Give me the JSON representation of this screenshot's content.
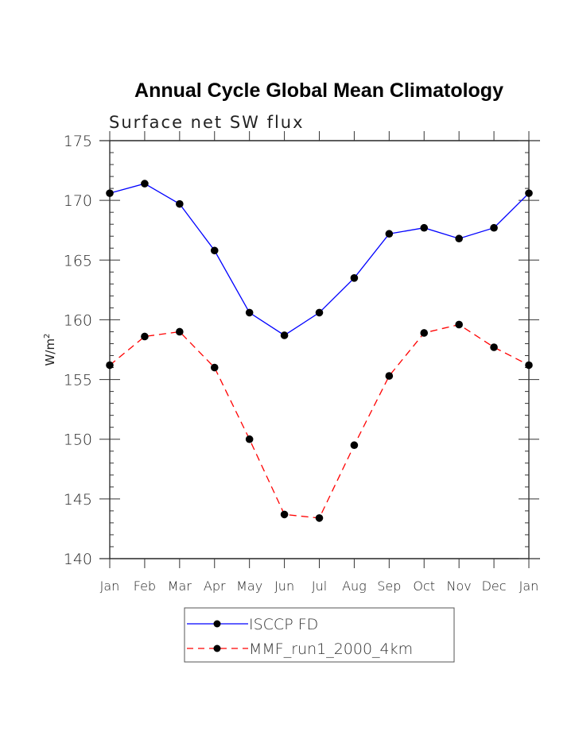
{
  "chart_data": {
    "type": "line",
    "title": "Annual Cycle Global Mean Climatology",
    "subtitle": "Surface net SW flux",
    "xlabel": "",
    "ylabel": "W/m2",
    "ylabel_base": "W/m",
    "ylabel_sup": "2",
    "categories": [
      "Jan",
      "Feb",
      "Mar",
      "Apr",
      "May",
      "Jun",
      "Jul",
      "Aug",
      "Sep",
      "Oct",
      "Nov",
      "Dec",
      "Jan"
    ],
    "ylim": [
      140,
      175
    ],
    "yticks": [
      140,
      145,
      150,
      155,
      160,
      165,
      170,
      175
    ],
    "grid": false,
    "legend_position": "bottom-center",
    "series": [
      {
        "name": "ISCCP FD",
        "color": "#0000ff",
        "style": "solid",
        "values": [
          170.6,
          171.4,
          169.7,
          165.8,
          160.6,
          158.7,
          160.6,
          163.5,
          167.2,
          167.7,
          166.8,
          167.7,
          170.6
        ]
      },
      {
        "name": "MMF_run1_2000_4km",
        "color": "#ff0000",
        "style": "dashed",
        "values": [
          156.2,
          158.6,
          159.0,
          156.0,
          150.0,
          143.7,
          143.4,
          149.5,
          155.3,
          158.9,
          159.6,
          157.7,
          156.2
        ]
      }
    ]
  }
}
